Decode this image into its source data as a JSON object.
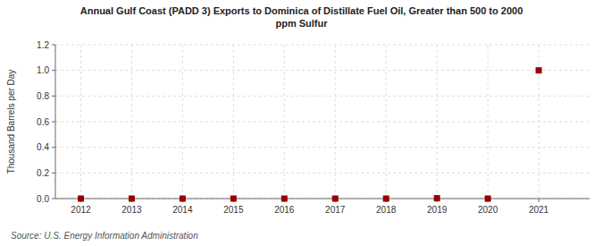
{
  "chart_data": {
    "type": "scatter",
    "title": "Annual Gulf Coast (PADD 3) Exports to Dominica of Distillate Fuel Oil, Greater than 500 to 2000\nppm Sulfur",
    "y_label": "Thousand Barrels per Day",
    "annotations": [
      "Source: U.S. Energy Information Administration"
    ],
    "x": [
      2012,
      2013,
      2014,
      2015,
      2016,
      2017,
      2018,
      2019,
      2020,
      2021
    ],
    "values": [
      0.0,
      0.0,
      0.0,
      0.0,
      0.0,
      0.0,
      0.0,
      0.003,
      0.0,
      1.0
    ],
    "color": "#990000",
    "marker": "square",
    "xlim": [
      2011.5,
      2022.0
    ],
    "xticks": [
      2012,
      2013,
      2014,
      2015,
      2016,
      2017,
      2018,
      2019,
      2020,
      2021
    ],
    "ylim": [
      0.0,
      1.2
    ],
    "yticks": [
      {
        "value": 0.0,
        "label": "0.0"
      },
      0.2,
      0.4,
      0.6,
      0.8,
      {
        "value": 1.0,
        "label": "1.0"
      },
      1.2
    ],
    "grid": true
  }
}
